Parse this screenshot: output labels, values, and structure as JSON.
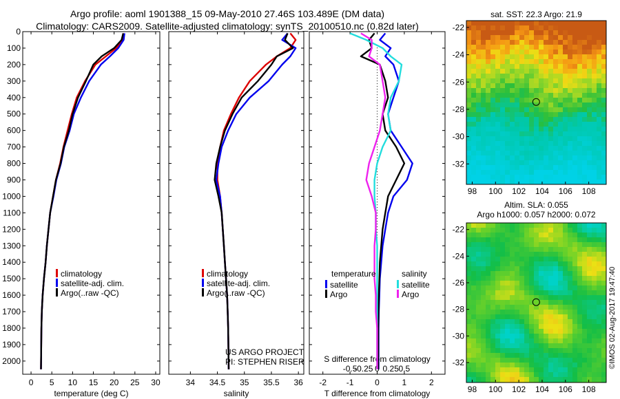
{
  "title_line1": "Argo profile: aoml 1901388_15 09-May-2010 27.46S 103.489E (DM data)",
  "title_line2": "Climatology: CARS2009. Satellite-adjusted climatology: synTS_20100510.nc (0.82d later)",
  "credits": [
    "US ARGO PROJECT",
    "PI: STEPHEN RISER"
  ],
  "watermark": "©IMOS 02-Aug-2017 19:47:40",
  "colors": {
    "climatology": "#dd0000",
    "satellite": "#0000ee",
    "argo": "#000000",
    "temp_diff_sat": "#0000ee",
    "sal_diff_sat": "#22dddd",
    "sal_diff_argo": "#ee22ee"
  },
  "chart_data": [
    {
      "type": "line",
      "xlabel": "temperature (deg C)",
      "xlim": [
        -2,
        31
      ],
      "ylim": [
        2080,
        0
      ],
      "xticks": [
        0,
        5,
        10,
        15,
        20,
        25,
        30
      ],
      "yticks": [
        0,
        100,
        200,
        300,
        400,
        500,
        600,
        700,
        800,
        900,
        1000,
        1100,
        1200,
        1300,
        1400,
        1500,
        1600,
        1700,
        1800,
        1900,
        2000
      ],
      "legend": [
        "climatology",
        "satellite-adj. clim.",
        "Argo(..raw -QC)"
      ],
      "series": [
        {
          "name": "climatology",
          "x": [
            22.3,
            22.0,
            20.5,
            18.0,
            15.5,
            13.0,
            11.0,
            9.8,
            8.8,
            7.8,
            7.0,
            6.0,
            5.3,
            4.6,
            4.2,
            3.8,
            3.5,
            3.1,
            2.8,
            2.6,
            2.5,
            2.4
          ],
          "y": [
            10,
            50,
            100,
            150,
            200,
            300,
            400,
            500,
            600,
            700,
            800,
            900,
            1000,
            1100,
            1200,
            1300,
            1400,
            1500,
            1600,
            1700,
            1800,
            2050
          ]
        },
        {
          "name": "satellite-adj. clim.",
          "x": [
            22.5,
            22.3,
            21.0,
            19.0,
            16.8,
            14.0,
            12.0,
            10.3,
            9.3,
            8.0,
            7.2,
            6.1,
            5.4,
            4.6,
            4.2,
            3.8,
            3.5,
            3.1,
            2.8,
            2.6,
            2.5,
            2.4
          ],
          "y": [
            10,
            50,
            100,
            150,
            200,
            300,
            400,
            500,
            600,
            700,
            800,
            900,
            1000,
            1100,
            1200,
            1300,
            1400,
            1500,
            1600,
            1700,
            1800,
            2050
          ]
        },
        {
          "name": "Argo(..raw -QC)",
          "x": [
            22.2,
            21.8,
            20.0,
            17.0,
            15.0,
            13.2,
            11.3,
            10.0,
            9.1,
            7.9,
            7.1,
            6.0,
            5.3,
            4.6,
            4.2,
            3.8,
            3.5,
            3.1,
            2.8,
            2.6,
            2.5,
            2.4
          ],
          "y": [
            10,
            50,
            100,
            150,
            200,
            300,
            400,
            500,
            600,
            700,
            800,
            900,
            1000,
            1100,
            1200,
            1300,
            1400,
            1500,
            1600,
            1700,
            1800,
            2050
          ]
        }
      ]
    },
    {
      "type": "line",
      "xlabel": "salinity",
      "xlim": [
        33.6,
        36.1
      ],
      "ylim": [
        2080,
        0
      ],
      "xticks": [
        34,
        34.5,
        35,
        35.5,
        36
      ],
      "legend": [
        "climatology",
        "satellite-adj. clim.",
        "Argo(..raw -QC)"
      ],
      "series": [
        {
          "name": "climatology",
          "x": [
            35.85,
            35.95,
            35.85,
            35.6,
            35.4,
            35.1,
            34.9,
            34.75,
            34.62,
            34.55,
            34.5,
            34.5,
            34.55,
            34.58,
            34.6,
            34.62,
            34.64,
            34.66,
            34.68,
            34.69,
            34.7,
            34.71
          ],
          "y": [
            10,
            50,
            100,
            150,
            200,
            300,
            400,
            500,
            600,
            700,
            800,
            900,
            1000,
            1100,
            1200,
            1300,
            1400,
            1500,
            1600,
            1700,
            1800,
            2050
          ]
        },
        {
          "name": "satellite-adj. clim.",
          "x": [
            35.8,
            35.7,
            35.95,
            35.85,
            35.7,
            35.45,
            35.1,
            34.85,
            34.7,
            34.58,
            34.52,
            34.48,
            34.55,
            34.58,
            34.6,
            34.62,
            34.64,
            34.66,
            34.68,
            34.69,
            34.7,
            34.71
          ],
          "y": [
            10,
            50,
            100,
            150,
            200,
            300,
            400,
            500,
            600,
            700,
            800,
            900,
            1000,
            1100,
            1200,
            1300,
            1400,
            1500,
            1600,
            1700,
            1800,
            2050
          ]
        },
        {
          "name": "Argo(..raw -QC)",
          "x": [
            35.8,
            35.75,
            35.9,
            35.6,
            35.5,
            35.25,
            34.95,
            34.78,
            34.64,
            34.55,
            34.48,
            34.45,
            34.52,
            34.58,
            34.6,
            34.62,
            34.64,
            34.66,
            34.68,
            34.69,
            34.7,
            34.71
          ],
          "y": [
            10,
            50,
            100,
            150,
            200,
            300,
            400,
            500,
            600,
            700,
            800,
            900,
            1000,
            1100,
            1200,
            1300,
            1400,
            1500,
            1600,
            1700,
            1800,
            2050
          ]
        }
      ]
    },
    {
      "type": "line",
      "xlabel": "T difference from climatology",
      "xlim": [
        -2.5,
        2.5
      ],
      "ylim": [
        2080,
        0
      ],
      "xticks": [
        -2,
        -1,
        0,
        1,
        2
      ],
      "x2label": "S difference from climatology",
      "x2ticks": [
        "-0.5",
        "-0.25",
        "0",
        "0.25",
        "0.5"
      ],
      "legend_groups": [
        "temperature",
        "salinity"
      ],
      "legend": [
        "satellite",
        "Argo",
        "satellite",
        "Argo"
      ],
      "series": [
        {
          "name": "satellite",
          "x": [
            0.3,
            0.1,
            0.5,
            0.3,
            0.6,
            0.8,
            0.6,
            0.4,
            0.5,
            0.9,
            1.3,
            1.1,
            0.6,
            0.4,
            0.3,
            0.2,
            0.15,
            0.1,
            0.08,
            0.06,
            0.05,
            0.05
          ],
          "y": [
            10,
            50,
            100,
            150,
            200,
            300,
            400,
            500,
            600,
            700,
            800,
            900,
            1000,
            1100,
            1200,
            1300,
            1400,
            1500,
            1600,
            1700,
            1800,
            2050
          ]
        },
        {
          "name": "Argo",
          "x": [
            -0.1,
            -0.3,
            -0.2,
            -0.6,
            0.1,
            0.3,
            0.4,
            0.2,
            0.3,
            0.7,
            1.0,
            0.7,
            0.4,
            0.3,
            0.2,
            0.15,
            0.1,
            0.08,
            0.06,
            0.05,
            0.04,
            0.04
          ],
          "y": [
            10,
            50,
            100,
            150,
            200,
            300,
            400,
            500,
            600,
            700,
            800,
            900,
            1000,
            1100,
            1200,
            1300,
            1400,
            1500,
            1600,
            1700,
            1800,
            2050
          ]
        },
        {
          "name": "satellite",
          "x": [
            -1.0,
            -0.4,
            0.2,
            0.5,
            0.9,
            0.8,
            0.5,
            0.4,
            0.5,
            0.2,
            0.0,
            -0.1,
            -0.1,
            -0.05,
            -0.05,
            0.0,
            0.0,
            0.0,
            0.0,
            0.0,
            0.0,
            0.0
          ],
          "y": [
            10,
            50,
            100,
            150,
            200,
            300,
            400,
            500,
            600,
            700,
            800,
            900,
            1000,
            1100,
            1200,
            1300,
            1400,
            1500,
            1600,
            1700,
            1800,
            2050
          ]
        },
        {
          "name": "Argo",
          "x": [
            -0.6,
            -0.2,
            -0.2,
            -0.3,
            0.1,
            0.2,
            0.3,
            0.2,
            0.1,
            -0.1,
            -0.3,
            -0.4,
            -0.2,
            -0.05,
            -0.05,
            -0.1,
            -0.1,
            -0.1,
            -0.05,
            -0.05,
            0.0,
            0.0
          ],
          "y": [
            10,
            50,
            100,
            150,
            200,
            300,
            400,
            500,
            600,
            700,
            800,
            900,
            1000,
            1100,
            1200,
            1300,
            1400,
            1500,
            1600,
            1700,
            1800,
            2050
          ]
        }
      ]
    },
    {
      "type": "heatmap",
      "title": "sat. SST: 22.3 Argo: 21.9",
      "xticks": [
        98,
        100,
        102,
        104,
        106,
        108
      ],
      "yticks": [
        -22,
        -24,
        -26,
        -28,
        -30,
        -32
      ],
      "xlim": [
        97.5,
        109.5
      ],
      "ylim": [
        -33.5,
        -21.5
      ],
      "marker": {
        "lon": 103.489,
        "lat": -27.46
      }
    },
    {
      "type": "heatmap",
      "title_line1": "Altim. SLA: 0.055",
      "title_line2": "Argo h1000: 0.057 h2000: 0.072",
      "xticks": [
        98,
        100,
        102,
        104,
        106,
        108
      ],
      "yticks": [
        -22,
        -24,
        -26,
        -28,
        -30,
        -32
      ],
      "xlim": [
        97.5,
        109.5
      ],
      "ylim": [
        -33.5,
        -21.5
      ],
      "marker": {
        "lon": 103.489,
        "lat": -27.46
      }
    }
  ]
}
